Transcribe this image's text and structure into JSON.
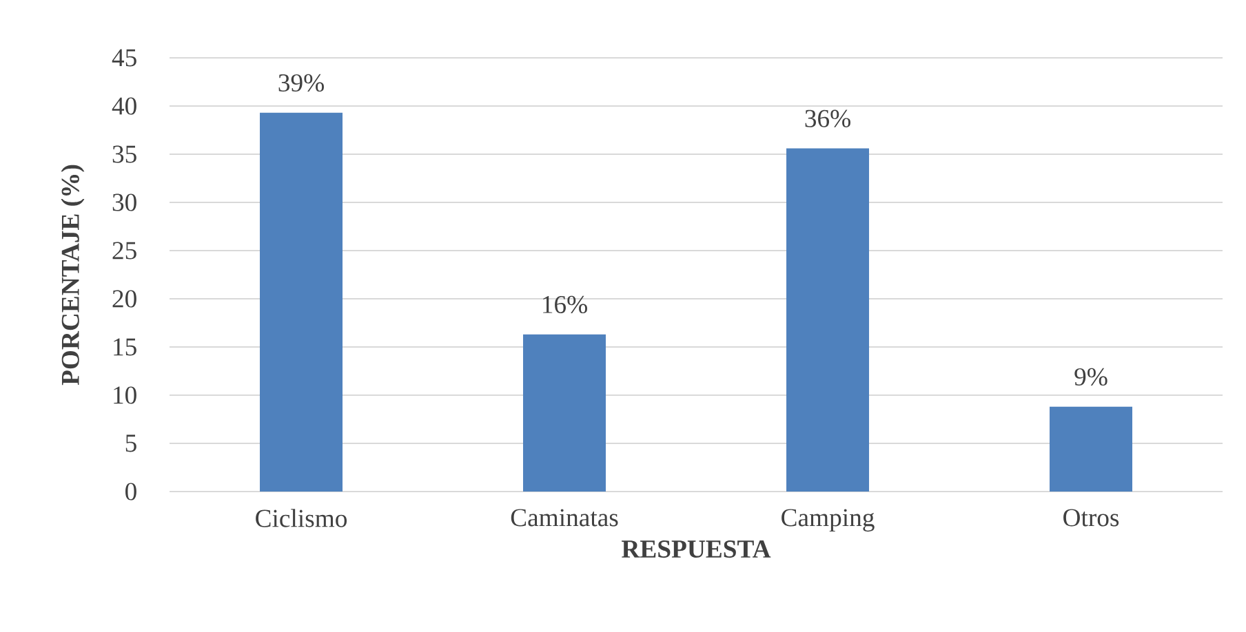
{
  "chart_data": {
    "type": "bar",
    "categories": [
      "Ciclismo",
      "Caminatas",
      "Camping",
      "Otros"
    ],
    "values": [
      39.3,
      16.3,
      35.6,
      8.8
    ],
    "value_labels": [
      "39%",
      "16%",
      "36%",
      "9%"
    ],
    "color": "#4f81bd",
    "xlabel": "RESPUESTA",
    "ylabel": "PORCENTAJE (%)",
    "ylim": [
      0,
      45
    ],
    "yticks": [
      0,
      5,
      10,
      15,
      20,
      25,
      30,
      35,
      40,
      45
    ],
    "grid": "y"
  }
}
